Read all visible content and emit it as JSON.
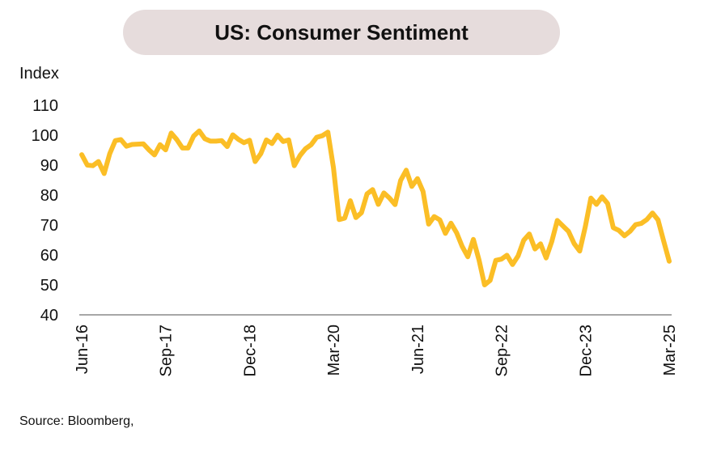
{
  "chart_data": {
    "type": "line",
    "title": "US: Consumer Sentiment",
    "ylabel": "Index",
    "source": "Source: Bloomberg,",
    "ylim": [
      40,
      110
    ],
    "yticks": [
      110,
      100,
      90,
      80,
      70,
      60,
      50,
      40
    ],
    "grid": false,
    "line_color": "#FBBE26",
    "x_ticks": [
      {
        "label": "Jun-16",
        "month_index": 0
      },
      {
        "label": "Sep-17",
        "month_index": 15
      },
      {
        "label": "Dec-18",
        "month_index": 30
      },
      {
        "label": "Mar-20",
        "month_index": 45
      },
      {
        "label": "Jun-21",
        "month_index": 60
      },
      {
        "label": "Sep-22",
        "month_index": 75
      },
      {
        "label": "Dec-23",
        "month_index": 90
      },
      {
        "label": "Mar-25",
        "month_index": 105
      }
    ],
    "series": [
      {
        "start": "Jun-16",
        "frequency": "monthly",
        "values": [
          93.5,
          90.0,
          89.8,
          91.2,
          87.2,
          93.8,
          98.2,
          98.5,
          96.3,
          96.9,
          97.0,
          97.1,
          95.1,
          93.4,
          96.8,
          95.1,
          100.7,
          98.5,
          95.7,
          95.7,
          99.7,
          101.4,
          98.8,
          98.0,
          98.0,
          98.2,
          96.2,
          100.1,
          98.6,
          97.5,
          98.3,
          91.2,
          93.8,
          98.4,
          97.2,
          100.0,
          97.9,
          98.4,
          89.8,
          93.2,
          95.5,
          96.8,
          99.3,
          99.8,
          101.0,
          89.1,
          71.8,
          72.3,
          78.1,
          72.5,
          74.1,
          80.4,
          81.8,
          76.9,
          80.7,
          79.0,
          76.8,
          84.9,
          88.3,
          82.9,
          85.5,
          81.2,
          70.3,
          72.8,
          71.7,
          67.2,
          70.6,
          67.4,
          62.8,
          59.4,
          65.2,
          58.4,
          50.0,
          51.5,
          58.2,
          58.6,
          59.9,
          56.8,
          59.7,
          64.9,
          67.0,
          62.0,
          63.7,
          59.0,
          64.4,
          71.5,
          69.7,
          67.9,
          63.8,
          61.3,
          69.4,
          79.0,
          76.9,
          79.4,
          77.2,
          69.1,
          68.2,
          66.4,
          67.9,
          70.1,
          70.5,
          71.8,
          74.0,
          71.7,
          64.7,
          57.9
        ]
      }
    ]
  }
}
